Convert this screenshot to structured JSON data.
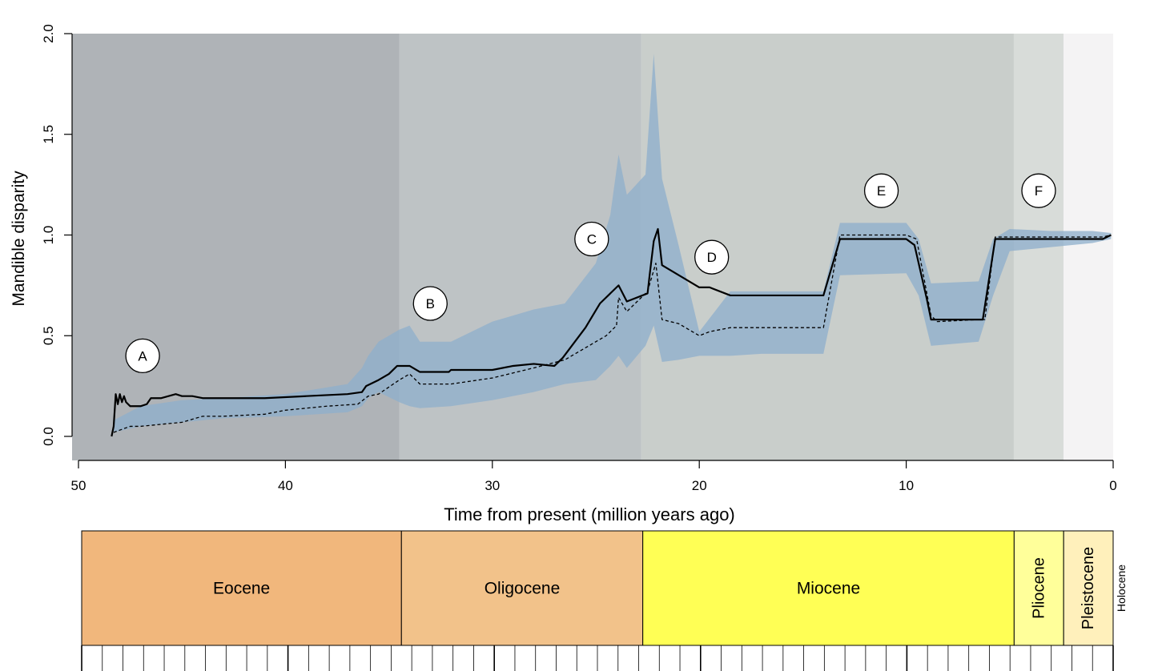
{
  "chart_data": {
    "type": "line",
    "xlabel": "Time from present (million years ago)",
    "ylabel": "Mandible disparity",
    "xlim": [
      50,
      0
    ],
    "ylim": [
      0,
      2
    ],
    "x_ticks": [
      50,
      40,
      30,
      20,
      10,
      0
    ],
    "y_ticks": [
      0.0,
      0.5,
      1.0,
      1.5,
      2.0
    ],
    "y_tick_labels": [
      "0.0",
      "0.5",
      "1.0",
      "1.5",
      "2.0"
    ],
    "grid": false,
    "background_bands": [
      {
        "from": 50,
        "to": 34.5,
        "color": "#afb3b7"
      },
      {
        "from": 34.5,
        "to": 22.8,
        "color": "#bec3c5"
      },
      {
        "from": 22.8,
        "to": 4.8,
        "color": "#c9cecb"
      },
      {
        "from": 4.8,
        "to": 2.4,
        "color": "#d8dcd9"
      },
      {
        "from": 2.4,
        "to": 0,
        "color": "#f4f3f4"
      }
    ],
    "interval": {
      "color": "#8fb0cc",
      "x": [
        48.3,
        47.0,
        45.0,
        43.0,
        40.0,
        37.0,
        36.3,
        36.0,
        35.5,
        34.5,
        34.0,
        33.5,
        32.0,
        30.0,
        28.0,
        26.5,
        25.0,
        24.3,
        23.9,
        23.5,
        22.6,
        22.2,
        21.8,
        21.0,
        20.0,
        18.5,
        17.0,
        14.0,
        13.2,
        10.0,
        9.4,
        8.8,
        6.5,
        5.8,
        5.0,
        3.0,
        1.0,
        0.1
      ],
      "lower": [
        0.02,
        0.05,
        0.07,
        0.09,
        0.1,
        0.12,
        0.15,
        0.19,
        0.22,
        0.17,
        0.15,
        0.14,
        0.15,
        0.18,
        0.22,
        0.26,
        0.28,
        0.35,
        0.4,
        0.34,
        0.45,
        0.55,
        0.37,
        0.38,
        0.4,
        0.4,
        0.41,
        0.41,
        0.8,
        0.81,
        0.7,
        0.45,
        0.47,
        0.7,
        0.92,
        0.94,
        0.96,
        0.98
      ],
      "upper": [
        0.08,
        0.15,
        0.18,
        0.19,
        0.21,
        0.26,
        0.34,
        0.4,
        0.47,
        0.53,
        0.55,
        0.47,
        0.47,
        0.57,
        0.63,
        0.66,
        0.86,
        1.1,
        1.4,
        1.2,
        1.3,
        1.9,
        1.28,
        0.95,
        0.52,
        0.72,
        0.72,
        0.72,
        1.06,
        1.06,
        0.98,
        0.76,
        0.77,
        0.98,
        1.03,
        1.02,
        1.02,
        1.01
      ]
    },
    "series": [
      {
        "style": "solid",
        "x": [
          48.4,
          48.3,
          48.2,
          48.1,
          48.0,
          47.9,
          47.8,
          47.7,
          47.5,
          47.0,
          46.7,
          46.5,
          46.0,
          45.3,
          45.0,
          44.5,
          44.0,
          43.0,
          41.0,
          39.0,
          37.0,
          36.3,
          36.1,
          35.5,
          35.0,
          34.6,
          34.0,
          33.5,
          32.1,
          32.0,
          30.0,
          29.0,
          28.0,
          27.0,
          26.6,
          25.5,
          24.8,
          23.9,
          23.5,
          22.5,
          22.4,
          22.2,
          22.0,
          21.8,
          20.0,
          19.5,
          18.5,
          14.0,
          13.2,
          10.0,
          9.6,
          9.0,
          8.8,
          6.5,
          6.3,
          5.7,
          5.0,
          3.0,
          1.0,
          0.5,
          0.1
        ],
        "y": [
          0.0,
          0.05,
          0.21,
          0.16,
          0.21,
          0.17,
          0.2,
          0.17,
          0.15,
          0.15,
          0.16,
          0.19,
          0.19,
          0.21,
          0.2,
          0.2,
          0.19,
          0.19,
          0.19,
          0.2,
          0.21,
          0.22,
          0.25,
          0.28,
          0.31,
          0.35,
          0.35,
          0.32,
          0.32,
          0.33,
          0.33,
          0.35,
          0.36,
          0.35,
          0.39,
          0.54,
          0.66,
          0.75,
          0.67,
          0.71,
          0.8,
          0.97,
          1.03,
          0.85,
          0.74,
          0.74,
          0.7,
          0.7,
          0.98,
          0.98,
          0.95,
          0.68,
          0.58,
          0.58,
          0.58,
          0.98,
          0.98,
          0.98,
          0.98,
          0.98,
          1.0
        ]
      },
      {
        "style": "dashed",
        "x": [
          48.3,
          47.5,
          47.0,
          46.0,
          45.0,
          44.0,
          43.0,
          41.0,
          40.0,
          38.0,
          36.5,
          36.0,
          35.5,
          34.5,
          34.0,
          33.5,
          32.0,
          30.0,
          28.0,
          26.5,
          25.5,
          24.5,
          24.0,
          23.9,
          23.5,
          22.5,
          22.1,
          21.8,
          21.0,
          20.0,
          19.5,
          18.5,
          14.0,
          13.2,
          10.0,
          9.5,
          8.8,
          8.5,
          6.5,
          6.2,
          5.7,
          5.0,
          3.0,
          1.0,
          0.5,
          0.1
        ],
        "y": [
          0.02,
          0.05,
          0.05,
          0.06,
          0.07,
          0.1,
          0.1,
          0.11,
          0.13,
          0.15,
          0.16,
          0.2,
          0.21,
          0.28,
          0.31,
          0.26,
          0.26,
          0.29,
          0.34,
          0.38,
          0.44,
          0.5,
          0.55,
          0.69,
          0.62,
          0.72,
          0.86,
          0.58,
          0.56,
          0.5,
          0.52,
          0.54,
          0.54,
          1.0,
          1.0,
          0.98,
          0.6,
          0.57,
          0.58,
          0.58,
          0.99,
          0.99,
          0.99,
          0.99,
          0.99,
          1.0
        ]
      }
    ],
    "annotations": [
      {
        "label": "A",
        "x": 46.9,
        "y": 0.4
      },
      {
        "label": "B",
        "x": 33.0,
        "y": 0.66
      },
      {
        "label": "C",
        "x": 25.2,
        "y": 0.98
      },
      {
        "label": "D",
        "x": 19.4,
        "y": 0.89
      },
      {
        "label": "E",
        "x": 11.2,
        "y": 1.22
      },
      {
        "label": "F",
        "x": 3.6,
        "y": 1.22
      }
    ],
    "epochs": [
      {
        "name": "Eocene",
        "from": 50,
        "to": 34.5,
        "color": "#f1b77c",
        "vertical": false
      },
      {
        "name": "Oligocene",
        "from": 34.5,
        "to": 22.8,
        "color": "#f2c28a",
        "vertical": false
      },
      {
        "name": "Miocene",
        "from": 22.8,
        "to": 4.8,
        "color": "#ffff55",
        "vertical": false
      },
      {
        "name": "Pliocene",
        "from": 4.8,
        "to": 2.4,
        "color": "#ffff9a",
        "vertical": true
      },
      {
        "name": "Pleistocene",
        "from": 2.4,
        "to": 0.0,
        "color": "#fff0bb",
        "vertical": true
      },
      {
        "name": "Holocene",
        "from": 0.0,
        "to": 0.0,
        "color": "#ffffff",
        "vertical": true
      }
    ]
  }
}
